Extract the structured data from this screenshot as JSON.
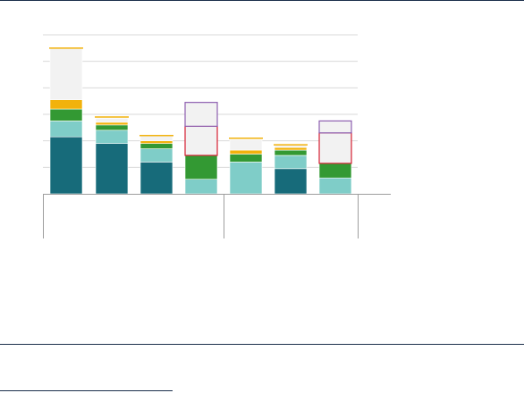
{
  "colors": {
    "background": "#ffffff",
    "rule": "#1b2f4b",
    "grid": "#d9d9d9",
    "axis": "#9e9e9e"
  },
  "chart_data": {
    "type": "bar",
    "stacked": true,
    "title": "",
    "xlabel": "",
    "ylabel": "",
    "ylim": [
      0,
      6
    ],
    "yticks": [
      0,
      1,
      2,
      3,
      4,
      5,
      6
    ],
    "grid": true,
    "legend": "none",
    "bar_count": 7,
    "groups": [
      {
        "name": "",
        "bars": [
          0,
          1,
          2,
          3
        ]
      },
      {
        "name": "",
        "bars": [
          4,
          5,
          6
        ]
      }
    ],
    "series": [
      {
        "name": "",
        "color": "#176b7a",
        "style": "fill",
        "values": [
          2.15,
          1.9,
          1.2,
          0,
          0,
          0.95,
          0
        ]
      },
      {
        "name": "",
        "color": "#7fcdc8",
        "style": "fill",
        "values": [
          0.6,
          0.5,
          0.5,
          0.55,
          1.2,
          0.5,
          0.6
        ]
      },
      {
        "name": "",
        "color": "#339933",
        "style": "fill",
        "values": [
          0.45,
          0.2,
          0.2,
          0.9,
          0.3,
          0.2,
          0.55
        ]
      },
      {
        "name": "",
        "color": "#f2b20c",
        "style": "fill",
        "values": [
          0.35,
          0.1,
          0.1,
          0,
          0.15,
          0.1,
          0
        ]
      },
      {
        "name": "",
        "color": "#f2f2f2",
        "style": "fill",
        "values": [
          1.95,
          0.15,
          0.2,
          0,
          0.4,
          0.1,
          0
        ]
      },
      {
        "name": "",
        "color": "#d62033",
        "style": "outline",
        "values": [
          0,
          0,
          0,
          1.1,
          0,
          0,
          1.15
        ]
      },
      {
        "name": "",
        "color": "#8e5fb0",
        "style": "outline",
        "values": [
          0,
          0,
          0,
          0.9,
          0,
          0,
          0.45
        ]
      }
    ],
    "caps": [
      {
        "color": "#f2b20c",
        "values": [
          5.5,
          2.9,
          2.2,
          0,
          2.1,
          1.85,
          0
        ]
      }
    ]
  }
}
